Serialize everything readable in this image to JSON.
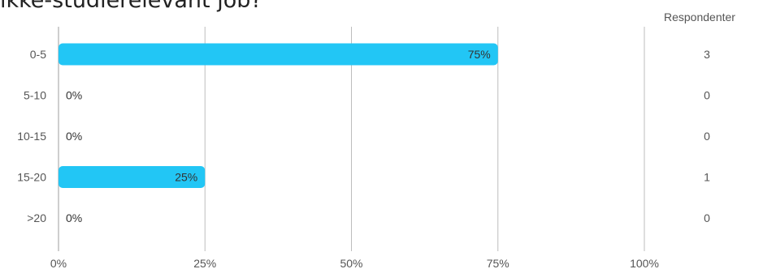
{
  "title": "ikke-studierelevant job?",
  "respondents_header": "Respondenter",
  "colors": {
    "bar": "#22c6f5",
    "grid": "#bdbdbd",
    "text": "#555555",
    "label": "#333333"
  },
  "chart_data": {
    "type": "bar",
    "orientation": "horizontal",
    "categories": [
      "0-5",
      "5-10",
      "10-15",
      "15-20",
      ">20"
    ],
    "values": [
      75,
      0,
      0,
      25,
      0
    ],
    "value_labels": [
      "75%",
      "0%",
      "0%",
      "25%",
      "0%"
    ],
    "respondents": [
      "3",
      "0",
      "0",
      "1",
      "0"
    ],
    "xlim": [
      0,
      100
    ],
    "xticks": [
      0,
      25,
      50,
      75,
      100
    ],
    "xtick_labels": [
      "0%",
      "25%",
      "50%",
      "75%",
      "100%"
    ],
    "grid": true
  }
}
